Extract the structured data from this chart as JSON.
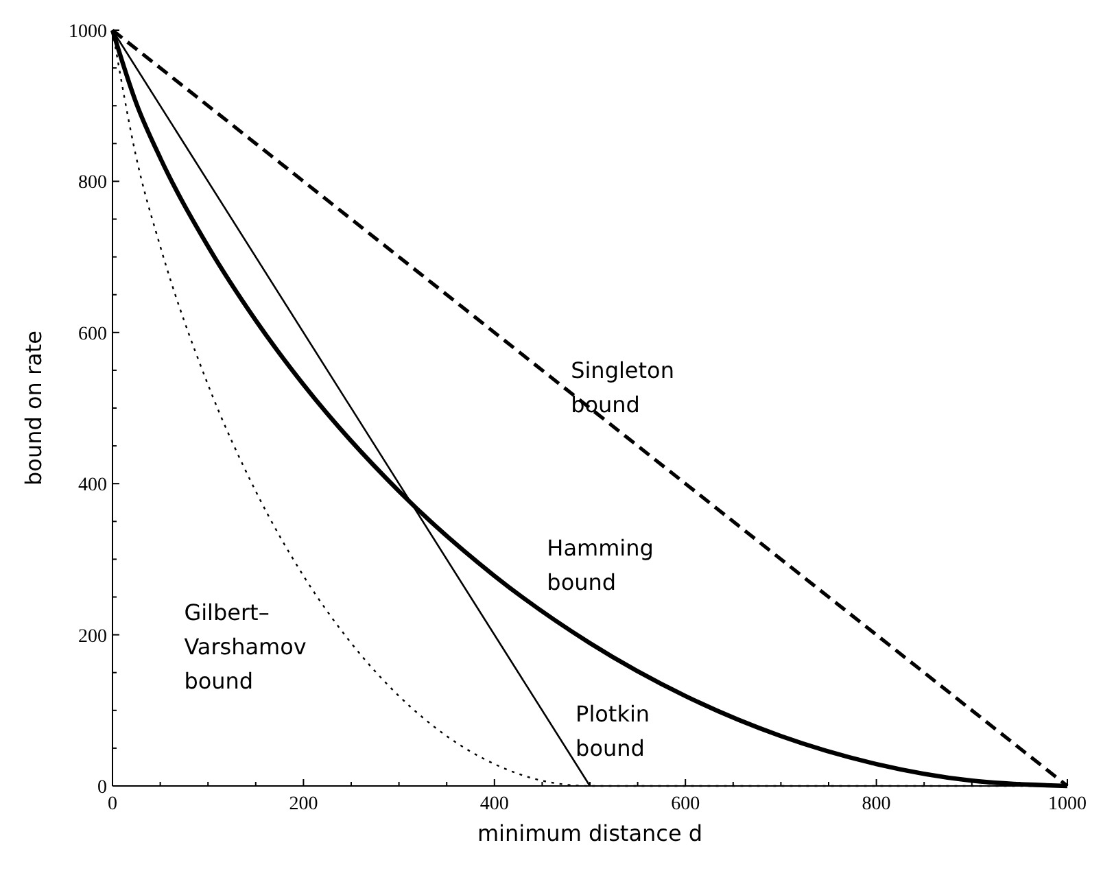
{
  "chart_data": {
    "type": "line",
    "xlabel": "minimum distance d",
    "ylabel": "bound on rate",
    "xlim": [
      0,
      1000
    ],
    "ylim": [
      0,
      1000
    ],
    "xticks": [
      0,
      {
        "value": 50,
        "label": null
      },
      {
        "value": 100,
        "label": null
      },
      {
        "value": 150,
        "label": null
      },
      200,
      {
        "value": 250,
        "label": null
      },
      {
        "value": 300,
        "label": null
      },
      {
        "value": 350,
        "label": null
      },
      400,
      {
        "value": 450,
        "label": null
      },
      {
        "value": 500,
        "label": null
      },
      {
        "value": 550,
        "label": null
      },
      600,
      {
        "value": 650,
        "label": null
      },
      {
        "value": 700,
        "label": null
      },
      {
        "value": 750,
        "label": null
      },
      800,
      {
        "value": 850,
        "label": null
      },
      {
        "value": 900,
        "label": null
      },
      {
        "value": 950,
        "label": null
      },
      1000
    ],
    "yticks": [
      0,
      {
        "value": 50,
        "label": null
      },
      {
        "value": 100,
        "label": null
      },
      {
        "value": 150,
        "label": null
      },
      200,
      {
        "value": 250,
        "label": null
      },
      {
        "value": 300,
        "label": null
      },
      {
        "value": 350,
        "label": null
      },
      400,
      {
        "value": 450,
        "label": null
      },
      {
        "value": 500,
        "label": null
      },
      {
        "value": 550,
        "label": null
      },
      600,
      {
        "value": 650,
        "label": null
      },
      {
        "value": 700,
        "label": null
      },
      {
        "value": 750,
        "label": null
      },
      800,
      {
        "value": 850,
        "label": null
      },
      {
        "value": 900,
        "label": null
      },
      {
        "value": 950,
        "label": null
      },
      1000
    ],
    "grid": false,
    "series": [
      {
        "name": "Singleton bound",
        "color": "#000000",
        "line_style": "dashed",
        "x": [
          0,
          1000
        ],
        "values": [
          1000,
          0
        ]
      },
      {
        "name": "Hamming bound",
        "color": "#000000",
        "line_style": "solid",
        "x": [
          0,
          25,
          50,
          100,
          150,
          200,
          300,
          400,
          500,
          600,
          700,
          800,
          900,
          1000
        ],
        "values": [
          1000,
          903,
          831,
          714,
          616,
          531,
          390,
          278,
          189,
          119,
          66,
          29,
          7,
          0
        ]
      },
      {
        "name": "Plotkin bound",
        "color": "#000000",
        "line_style": "solid",
        "x": [
          0,
          500
        ],
        "values": [
          1000,
          0
        ]
      },
      {
        "name": "Gilbert–Varshamov bound",
        "color": "#000000",
        "line_style": "dotted",
        "x": [
          0,
          25,
          50,
          100,
          150,
          200,
          250,
          300,
          350,
          400,
          450,
          500,
          1000
        ],
        "values": [
          1000,
          831,
          714,
          531,
          390,
          278,
          189,
          119,
          66,
          29,
          7,
          0,
          0
        ]
      }
    ]
  }
}
